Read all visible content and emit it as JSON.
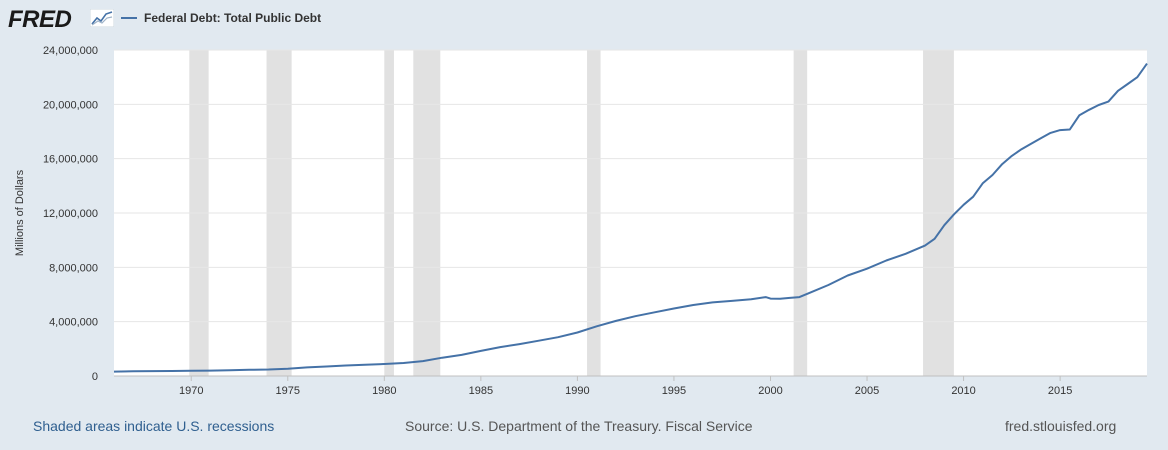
{
  "header": {
    "logo_text": "FRED",
    "logo_icon": "line-chart-icon",
    "legend_label": "Federal Debt: Total Public Debt"
  },
  "footer": {
    "recession_note": "Shaded areas indicate U.S. recessions",
    "source": "Source: U.S. Department of the Treasury. Fiscal Service",
    "site_link": "fred.stlouisfed.org"
  },
  "colors": {
    "line": "#4572a7",
    "recession": "#e1e1e1",
    "background": "#e1e9f0",
    "plot": "#ffffff"
  },
  "chart_data": {
    "type": "line",
    "ylabel": "Millions of Dollars",
    "xlim": [
      1966,
      2019.5
    ],
    "ylim": [
      0,
      24000000
    ],
    "x_ticks": [
      1970,
      1975,
      1980,
      1985,
      1990,
      1995,
      2000,
      2005,
      2010,
      2015
    ],
    "y_ticks": [
      {
        "value": 0,
        "label": "0"
      },
      {
        "value": 4000000,
        "label": "4,000,000"
      },
      {
        "value": 8000000,
        "label": "8,000,000"
      },
      {
        "value": 12000000,
        "label": "12,000,000"
      },
      {
        "value": 16000000,
        "label": "16,000,000"
      },
      {
        "value": 20000000,
        "label": "20,000,000"
      },
      {
        "value": 24000000,
        "label": "24,000,000"
      }
    ],
    "grid": true,
    "recessions": [
      [
        1969.9,
        1970.9
      ],
      [
        1973.9,
        1975.2
      ],
      [
        1980.0,
        1980.5
      ],
      [
        1981.5,
        1982.9
      ],
      [
        1990.5,
        1991.2
      ],
      [
        2001.2,
        2001.9
      ],
      [
        2007.9,
        2009.5
      ]
    ],
    "series": [
      {
        "name": "Federal Debt: Total Public Debt",
        "x": [
          1966,
          1967,
          1968,
          1969,
          1970,
          1971,
          1972,
          1973,
          1974,
          1975,
          1976,
          1977,
          1978,
          1979,
          1980,
          1981,
          1982,
          1983,
          1984,
          1985,
          1986,
          1987,
          1988,
          1989,
          1990,
          1991,
          1992,
          1993,
          1994,
          1995,
          1996,
          1997,
          1998,
          1999,
          1999.75,
          2000,
          2000.5,
          2001,
          2001.5,
          2002,
          2003,
          2004,
          2005,
          2006,
          2007,
          2008,
          2008.5,
          2009,
          2009.5,
          2010,
          2010.5,
          2011,
          2011.5,
          2012,
          2012.5,
          2013,
          2013.5,
          2014,
          2014.5,
          2015,
          2015.5,
          2016,
          2016.5,
          2017,
          2017.5,
          2018,
          2018.5,
          2019,
          2019.5
        ],
        "y": [
          325000,
          345000,
          360000,
          365000,
          380000,
          400000,
          430000,
          460000,
          480000,
          540000,
          630000,
          700000,
          770000,
          830000,
          880000,
          960000,
          1100000,
          1350000,
          1550000,
          1850000,
          2130000,
          2350000,
          2600000,
          2860000,
          3200000,
          3660000,
          4060000,
          4400000,
          4690000,
          4970000,
          5230000,
          5420000,
          5530000,
          5650000,
          5810000,
          5700000,
          5680000,
          5750000,
          5810000,
          6100000,
          6700000,
          7400000,
          7900000,
          8500000,
          9000000,
          9600000,
          10100000,
          11100000,
          11900000,
          12600000,
          13200000,
          14200000,
          14800000,
          15600000,
          16200000,
          16700000,
          17100000,
          17500000,
          17900000,
          18100000,
          18150000,
          19200000,
          19600000,
          19950000,
          20200000,
          21000000,
          21500000,
          22000000,
          23000000
        ]
      }
    ]
  }
}
